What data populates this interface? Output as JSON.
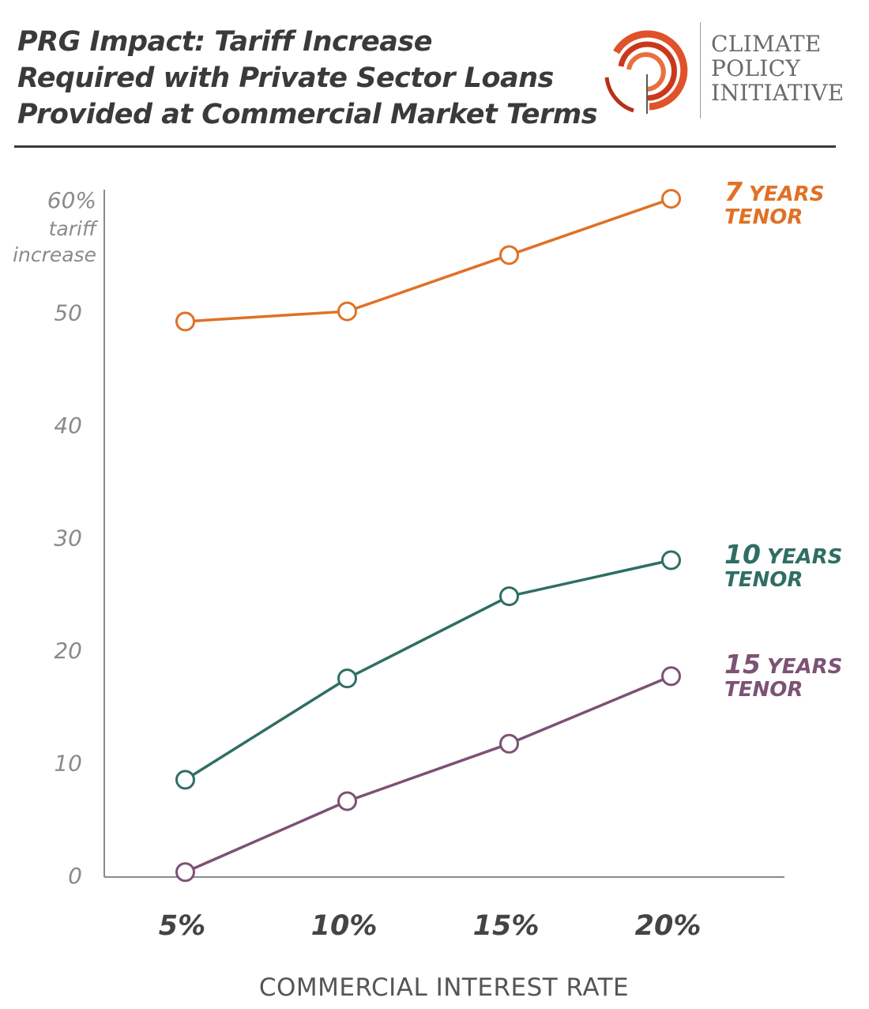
{
  "header": {
    "title_lines": [
      "PRG Impact: Tariff Increase",
      "Required with Private Sector Loans",
      "Provided at Commercial Market Terms"
    ]
  },
  "logo": {
    "lines": [
      "CLIMATE",
      "POLICY",
      "INITIATIVE"
    ],
    "color": "#e0522a",
    "icon": "climate-policy-initiative-swirl-logo"
  },
  "chart_data": {
    "type": "line",
    "title": "PRG Impact: Tariff Increase Required with Private Sector Loans Provided at Commercial Market Terms",
    "xlabel": "COMMERCIAL INTEREST RATE",
    "ylabel_lines": [
      "60%",
      "tariff",
      "increase"
    ],
    "categories": [
      "5%",
      "10%",
      "15%",
      "20%"
    ],
    "x": [
      5,
      10,
      15,
      20
    ],
    "xlim": [
      2.5,
      23.5
    ],
    "ylim": [
      0,
      60
    ],
    "y_ticks": [
      {
        "value": 60,
        "label": "60%"
      },
      {
        "value": 50,
        "label": "50"
      },
      {
        "value": 40,
        "label": "40"
      },
      {
        "value": 30,
        "label": "30"
      },
      {
        "value": 20,
        "label": "20"
      },
      {
        "value": 10,
        "label": "10"
      },
      {
        "value": 0,
        "label": "0"
      }
    ],
    "grid": false,
    "legend": "labels at line ends (right)",
    "series": [
      {
        "name": "7 YEARS TENOR",
        "label_num": "7",
        "label_word": "YEARS",
        "label_line2": "TENOR",
        "color": "#e07126",
        "values": [
          49.2,
          50.1,
          55.1,
          60.1
        ]
      },
      {
        "name": "10 YEARS TENOR",
        "label_num": "10",
        "label_word": "YEARS",
        "label_line2": "TENOR",
        "color": "#2f6e64",
        "values": [
          8.5,
          17.5,
          24.8,
          28.0
        ]
      },
      {
        "name": "15 YEARS TENOR",
        "label_num": "15",
        "label_word": "YEARS",
        "label_line2": "TENOR",
        "color": "#7c5275",
        "values": [
          0.3,
          6.6,
          11.7,
          17.7
        ]
      }
    ]
  }
}
